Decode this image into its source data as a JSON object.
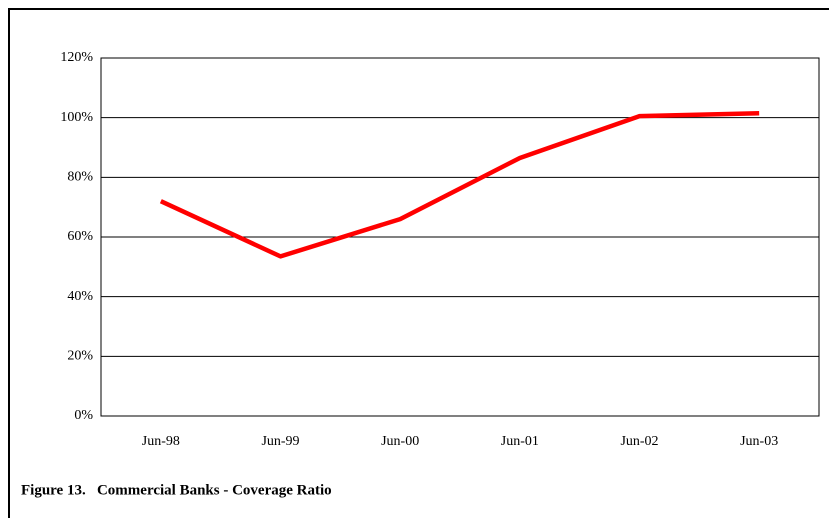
{
  "chart_data": {
    "type": "line",
    "title": "Figure 13.   Commercial Banks - Coverage Ratio",
    "categories": [
      "Jun-98",
      "Jun-99",
      "Jun-00",
      "Jun-01",
      "Jun-02",
      "Jun-03"
    ],
    "series": [
      {
        "name": "Coverage Ratio",
        "color": "#ff0000",
        "values": [
          72,
          53.5,
          66,
          86.5,
          100.5,
          101.5
        ]
      }
    ],
    "ylim": [
      0,
      120
    ],
    "yticks": [
      {
        "value": 0,
        "label": "0%"
      },
      {
        "value": 20,
        "label": "20%"
      },
      {
        "value": 40,
        "label": "40%"
      },
      {
        "value": 60,
        "label": "60%"
      },
      {
        "value": 80,
        "label": "80%"
      },
      {
        "value": 100,
        "label": "100%"
      },
      {
        "value": 120,
        "label": "120%"
      }
    ],
    "grid": true
  }
}
